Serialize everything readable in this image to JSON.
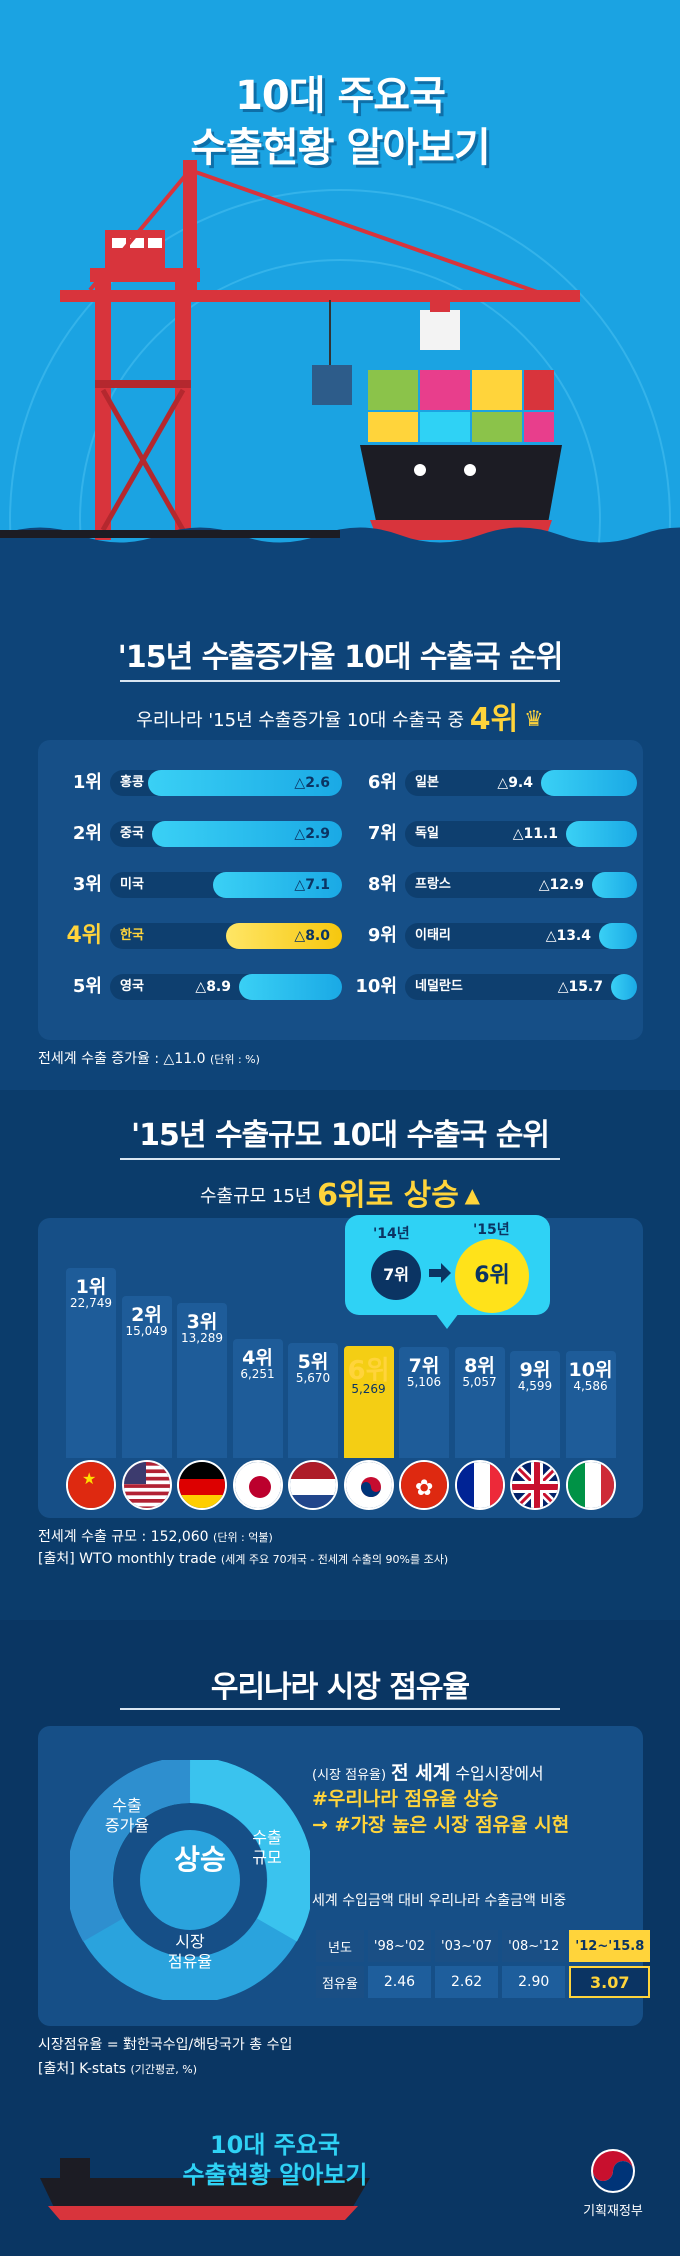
{
  "hero": {
    "title_line1": "10대 주요국",
    "title_line2": "수출현황 알아보기"
  },
  "growth": {
    "title": "'15년 수출증가율 10대 수출국 순위",
    "subtitle_prefix": "우리나라 '15년 수출증가율 10대 수출국 중",
    "subtitle_rank": "4위",
    "ranks": [
      {
        "rank": "1위",
        "country": "홍콩",
        "value_label": "△2.6",
        "value": -2.6
      },
      {
        "rank": "2위",
        "country": "중국",
        "value_label": "△2.9",
        "value": -2.9
      },
      {
        "rank": "3위",
        "country": "미국",
        "value_label": "△7.1",
        "value": -7.1
      },
      {
        "rank": "4위",
        "country": "한국",
        "value_label": "△8.0",
        "value": -8.0,
        "highlight": true
      },
      {
        "rank": "5위",
        "country": "영국",
        "value_label": "△8.9",
        "value": -8.9
      },
      {
        "rank": "6위",
        "country": "일본",
        "value_label": "△9.4",
        "value": -9.4
      },
      {
        "rank": "7위",
        "country": "독일",
        "value_label": "△11.1",
        "value": -11.1
      },
      {
        "rank": "8위",
        "country": "프랑스",
        "value_label": "△12.9",
        "value": -12.9
      },
      {
        "rank": "9위",
        "country": "이태리",
        "value_label": "△13.4",
        "value": -13.4
      },
      {
        "rank": "10위",
        "country": "네덜란드",
        "value_label": "△15.7",
        "value": -15.7
      }
    ],
    "note": "전세계 수출 증가율 : △11.0",
    "note_unit": "(단위 : %)"
  },
  "scale": {
    "title": "'15년 수출규모 10대 수출국 순위",
    "subtitle_prefix": "수출규모 15년",
    "subtitle_highlight": "6위로 상승",
    "callout": {
      "y1": "'14년",
      "r1": "7위",
      "y2": "'15년",
      "r2": "6위"
    },
    "bars": [
      {
        "rank": "1위",
        "value_label": "22,749",
        "value": 22749,
        "flag": "china"
      },
      {
        "rank": "2위",
        "value_label": "15,049",
        "value": 15049,
        "flag": "usa"
      },
      {
        "rank": "3위",
        "value_label": "13,289",
        "value": 13289,
        "flag": "germany"
      },
      {
        "rank": "4위",
        "value_label": "6,251",
        "value": 6251,
        "flag": "japan"
      },
      {
        "rank": "5위",
        "value_label": "5,670",
        "value": 5670,
        "flag": "netherlands"
      },
      {
        "rank": "6위",
        "value_label": "5,269",
        "value": 5269,
        "flag": "korea",
        "highlight": true
      },
      {
        "rank": "7위",
        "value_label": "5,106",
        "value": 5106,
        "flag": "hongkong"
      },
      {
        "rank": "8위",
        "value_label": "5,057",
        "value": 5057,
        "flag": "france"
      },
      {
        "rank": "9위",
        "value_label": "4,599",
        "value": 4599,
        "flag": "uk"
      },
      {
        "rank": "10위",
        "value_label": "4,586",
        "value": 4586,
        "flag": "italy"
      }
    ],
    "note1": "전세계 수출 규모 : 152,060",
    "note1_unit": "(단위 : 억불)",
    "note2": "[출처] WTO monthly trade",
    "note2_small": "(세계 주요 70개국 - 전세계 수출의 90%를 조사)"
  },
  "share": {
    "title": "우리나라 시장 점유율",
    "ring_words": [
      "수출\n증가율",
      "수출\n규모",
      "시장\n점유율"
    ],
    "center": "상승",
    "line1_prefix": "(시장 점유율)",
    "line1_bold": "전 세계",
    "line1_suffix": "수입시장에서",
    "line2": "#우리나라 점유율 상승",
    "line3": "→ #가장 높은 시장 점유율 시현",
    "table_caption": "세계 수입금액 대비 우리나라 수출금액 비중",
    "table_header": [
      "년도",
      "'98~'02",
      "'03~'07",
      "'08~'12",
      "'12~'15.8"
    ],
    "table_row": [
      "점유율",
      "2.46",
      "2.62",
      "2.90",
      "3.07"
    ],
    "note1": "시장점유율 = 對한국수입/해당국가 총 수입",
    "note2": "[출처] K-stats",
    "note2_small": "(기간평균, %)"
  },
  "footer": {
    "title_line1": "10대 주요국",
    "title_line2": "수출현황 알아보기",
    "logo_label": "기획재정부"
  },
  "colors": {
    "accent_yellow": "#ffd43b",
    "accent_cyan": "#2fd2f5",
    "navy": "#0b3463"
  }
}
